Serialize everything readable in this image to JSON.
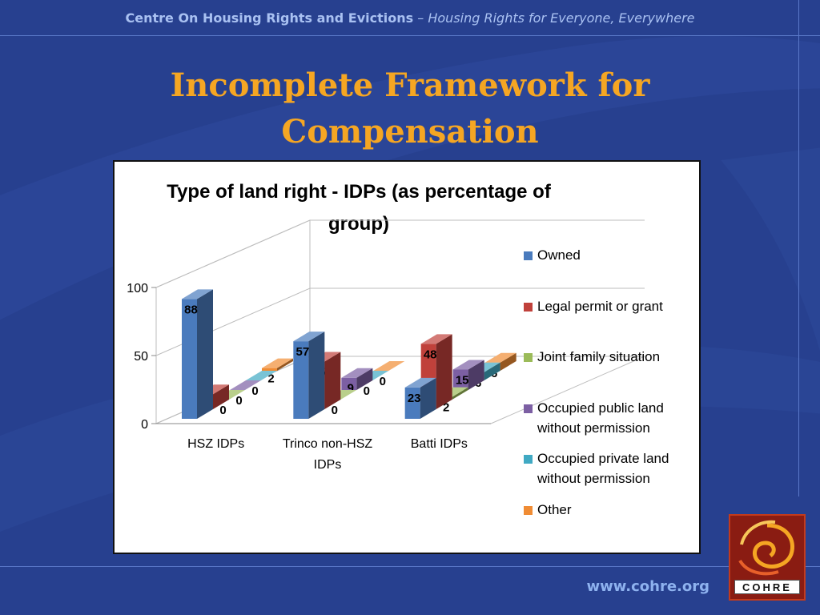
{
  "header": {
    "organization": "Centre On Housing Rights and Evictions",
    "separator": " – ",
    "tagline": "Housing Rights for Everyone, Everywhere"
  },
  "slide_title": {
    "line1": "Incomplete Framework for",
    "line2": "Compensation"
  },
  "footer": {
    "url": "www.cohre.org",
    "logo_text": "COHRE"
  },
  "colors": {
    "background": "#27408f",
    "title": "#f5a623",
    "header_text": "#a9c1f2"
  },
  "chart_data": {
    "type": "bar",
    "title_lines": [
      "Type of land right - IDPs (as percentage of",
      "group)"
    ],
    "categories": [
      [
        "HSZ IDPs"
      ],
      [
        "Trinco non-HSZ",
        "IDPs"
      ],
      [
        "Batti IDPs"
      ]
    ],
    "series": [
      {
        "name": "Owned",
        "values": [
          88,
          57,
          23
        ],
        "color": "#4a7bbd"
      },
      {
        "name": "Legal permit or grant",
        "values": [
          11,
          35,
          48
        ],
        "color": "#c0413b"
      },
      {
        "name": "Joint family situation",
        "values": [
          0,
          0,
          2
        ],
        "color": "#9bbb59"
      },
      {
        "name": "Occupied public land without permission",
        "values": [
          0,
          9,
          15
        ],
        "color": "#7c5fa3"
      },
      {
        "name": "Occupied private land without permission",
        "values": [
          0,
          0,
          6
        ],
        "color": "#40a9c3"
      },
      {
        "name": "Other",
        "values": [
          2,
          0,
          6
        ],
        "color": "#f08c34"
      }
    ],
    "yticks": [
      0,
      50,
      100
    ],
    "ylim": [
      0,
      100
    ],
    "three_d": true,
    "grid": true,
    "legend_position": "right"
  }
}
